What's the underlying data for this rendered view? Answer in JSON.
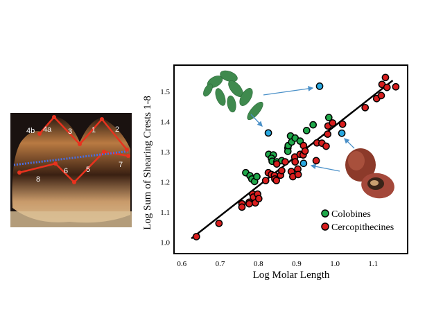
{
  "tooth_figure": {
    "crest_labels": [
      "4b",
      "4a",
      "3",
      "1",
      "2",
      "7",
      "8",
      "6",
      "5"
    ]
  },
  "chart_data": {
    "type": "scatter",
    "xlabel": "Log Molar Length",
    "ylabel": "Log Sum of Shearing Crests 1-8",
    "xlim": [
      0.6,
      1.16
    ],
    "ylim": [
      0.97,
      1.58
    ],
    "xticks": [
      "0.6",
      "0.7",
      "0.8",
      "0.9",
      "1.0",
      "1.1"
    ],
    "yticks": [
      "1.0",
      "1.1",
      "1.2",
      "1.3",
      "1.4",
      "1.5"
    ],
    "legend_position": "bottom-right",
    "colors": {
      "Colobines": "#1fa84a",
      "Cercopithecines": "#d81e1e",
      "Highlighted": "#29a8e0",
      "line": "#000000",
      "arrow": "#4a90c8"
    },
    "series": [
      {
        "name": "Colobines",
        "points": [
          [
            0.767,
            1.23
          ],
          [
            0.778,
            1.22
          ],
          [
            0.783,
            1.209
          ],
          [
            0.79,
            1.201
          ],
          [
            0.796,
            1.217
          ],
          [
            0.827,
            1.291
          ],
          [
            0.839,
            1.289
          ],
          [
            0.834,
            1.278
          ],
          [
            0.836,
            1.268
          ],
          [
            0.848,
            1.266
          ],
          [
            0.861,
            1.27
          ],
          [
            0.877,
            1.312
          ],
          [
            0.877,
            1.301
          ],
          [
            0.878,
            1.32
          ],
          [
            0.884,
            1.352
          ],
          [
            0.887,
            1.332
          ],
          [
            0.896,
            1.345
          ],
          [
            0.909,
            1.335
          ],
          [
            0.926,
            1.37
          ],
          [
            0.943,
            1.389
          ],
          [
            0.984,
            1.413
          ]
        ]
      },
      {
        "name": "Cercopithecines",
        "points": [
          [
            0.638,
            1.018
          ],
          [
            0.697,
            1.062
          ],
          [
            0.757,
            1.127
          ],
          [
            0.757,
            1.116
          ],
          [
            0.776,
            1.132
          ],
          [
            0.776,
            1.127
          ],
          [
            0.785,
            1.159
          ],
          [
            0.787,
            1.149
          ],
          [
            0.792,
            1.13
          ],
          [
            0.798,
            1.159
          ],
          [
            0.801,
            1.144
          ],
          [
            0.819,
            1.204
          ],
          [
            0.826,
            1.23
          ],
          [
            0.834,
            1.224
          ],
          [
            0.842,
            1.221
          ],
          [
            0.843,
            1.209
          ],
          [
            0.847,
            1.204
          ],
          [
            0.848,
            1.259
          ],
          [
            0.858,
            1.222
          ],
          [
            0.861,
            1.237
          ],
          [
            0.87,
            1.266
          ],
          [
            0.886,
            1.234
          ],
          [
            0.89,
            1.217
          ],
          [
            0.895,
            1.282
          ],
          [
            0.896,
            1.266
          ],
          [
            0.903,
            1.242
          ],
          [
            0.904,
            1.224
          ],
          [
            0.909,
            1.291
          ],
          [
            0.917,
            1.289
          ],
          [
            0.918,
            1.32
          ],
          [
            0.922,
            1.302
          ],
          [
            0.951,
            1.27
          ],
          [
            0.953,
            1.329
          ],
          [
            0.966,
            1.328
          ],
          [
            0.977,
            1.318
          ],
          [
            0.981,
            1.358
          ],
          [
            0.982,
            1.385
          ],
          [
            0.994,
            1.395
          ],
          [
            1.02,
            1.391
          ],
          [
            1.079,
            1.446
          ],
          [
            1.109,
            1.476
          ],
          [
            1.121,
            1.486
          ],
          [
            1.123,
            1.523
          ],
          [
            1.132,
            1.546
          ],
          [
            1.136,
            1.513
          ],
          [
            1.159,
            1.515
          ]
        ]
      },
      {
        "name": "Highlighted",
        "points": [
          [
            0.96,
            1.517
          ],
          [
            0.826,
            1.362
          ],
          [
            0.918,
            1.261
          ],
          [
            1.018,
            1.361
          ]
        ]
      }
    ],
    "regression_line": [
      [
        0.625,
        1.012
      ],
      [
        1.151,
        1.536
      ]
    ],
    "legend": [
      "Colobines",
      "Cercopithecines"
    ]
  }
}
